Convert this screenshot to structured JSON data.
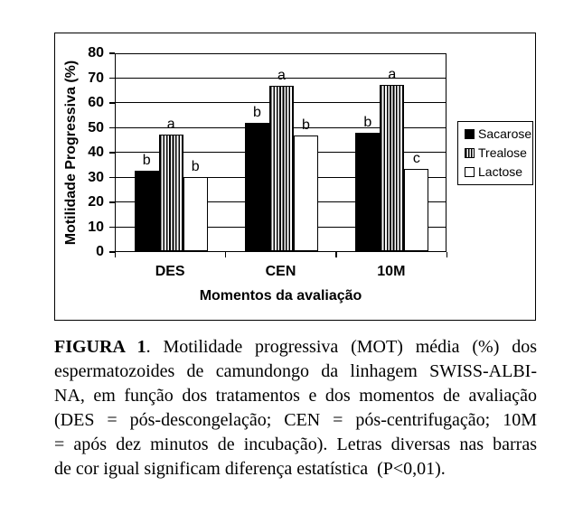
{
  "figure": {
    "caption": {
      "bold_label": "FIGURA 1",
      "lines": [
        ". Motilidade progressiva (MOT) média (%) dos",
        "espermatozoides de camundongo da linhagem SWISS-ALBI-",
        "NA, em função dos tratamentos e dos momentos de avaliação",
        "(DES = pós-descongelação; CEN = pós-centrifugação; 10M",
        "= após dez minutos de incubação). Letras diversas nas barras",
        "de cor igual significam diferença estatística  (P<0,01)."
      ]
    }
  },
  "chart_data": {
    "type": "bar",
    "title": "",
    "xlabel": "Momentos da avaliação",
    "ylabel": "Motilidade Progressiva (%)",
    "categories": [
      "DES",
      "CEN",
      "10M"
    ],
    "series": [
      {
        "name": "Sacarose",
        "pattern": "solid-black",
        "values": [
          32.5,
          51.5,
          47.5
        ],
        "letters": [
          "b",
          "b",
          "b"
        ]
      },
      {
        "name": "Trealose",
        "pattern": "vertical-stripes",
        "values": [
          47,
          66.5,
          67
        ],
        "letters": [
          "a",
          "a",
          "a"
        ]
      },
      {
        "name": "Lactose",
        "pattern": "open-white",
        "values": [
          30,
          46.5,
          33
        ],
        "letters": [
          "b",
          "b",
          "c"
        ]
      }
    ],
    "ylim": [
      0,
      80
    ],
    "ytick_step": 10,
    "grid": true,
    "legend_position": "right",
    "colors": {
      "bar_fill": "#000000",
      "bar_open": "#ffffff",
      "axis": "#000000",
      "background": "#ffffff"
    }
  }
}
